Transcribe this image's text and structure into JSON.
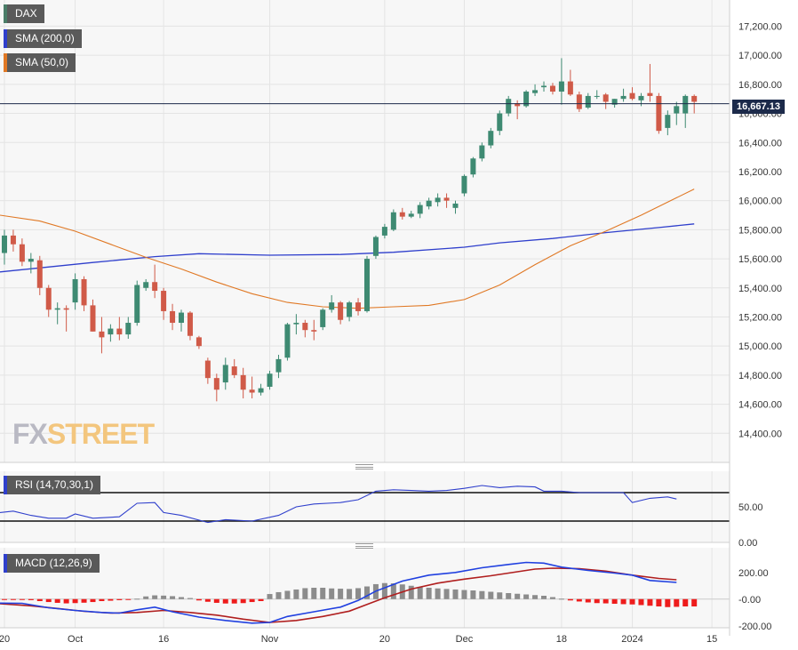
{
  "colors": {
    "up": "#3e8a72",
    "down": "#d05a48",
    "sma200": "#2f3fcc",
    "sma50": "#e07824",
    "macd": "#2040e0",
    "signal": "#b01e1e",
    "hist_pos": "#8c8c8c",
    "hist_neg": "#ee1c1c",
    "rsi": "#2f3fcc",
    "price_line": "#1c2a4a",
    "grid": "#e4e4e4",
    "panel_bg": "#f7f7f7"
  },
  "legend": {
    "dax": "DAX",
    "sma200": "SMA (200,0)",
    "sma50": "SMA (50,0)",
    "rsi": "RSI (14,70,30,1)",
    "macd": "MACD (12,26,9)"
  },
  "watermark": {
    "fx": "FX",
    "street": "STREET"
  },
  "last_price_label": "16,667.13",
  "chart_data": [
    {
      "type": "candlestick",
      "title": "DAX",
      "x_tick_labels": [
        {
          "label": "20",
          "index": 0
        },
        {
          "label": "Oct",
          "index": 8
        },
        {
          "label": "16",
          "index": 18
        },
        {
          "label": "Nov",
          "index": 30
        },
        {
          "label": "20",
          "index": 43
        },
        {
          "label": "Dec",
          "index": 52
        },
        {
          "label": "18",
          "index": 63
        },
        {
          "label": "2024",
          "index": 71
        },
        {
          "label": "15",
          "index": 80
        }
      ],
      "y_tick_labels": [
        "14,400.00",
        "14,600.00",
        "14,800.00",
        "15,000.00",
        "15,200.00",
        "15,400.00",
        "15,600.00",
        "15,800.00",
        "16,000.00",
        "16,200.00",
        "16,400.00",
        "16,600.00",
        "16,800.00",
        "17,000.00",
        "17,200.00"
      ],
      "ylim": [
        14200,
        17380
      ],
      "x_range": [
        -0.5,
        82
      ],
      "last_price": 16667.13,
      "candles": [
        [
          15640,
          15800,
          15560,
          15760
        ],
        [
          15760,
          15800,
          15650,
          15700
        ],
        [
          15700,
          15740,
          15550,
          15580
        ],
        [
          15580,
          15640,
          15500,
          15600
        ],
        [
          15590,
          15620,
          15350,
          15400
        ],
        [
          15400,
          15420,
          15200,
          15250
        ],
        [
          15250,
          15300,
          15150,
          15260
        ],
        [
          15260,
          15280,
          15100,
          15250
        ],
        [
          15300,
          15500,
          15250,
          15460
        ],
        [
          15460,
          15480,
          15240,
          15280
        ],
        [
          15280,
          15320,
          15100,
          15100
        ],
        [
          15100,
          15200,
          14950,
          15060
        ],
        [
          15080,
          15150,
          15030,
          15120
        ],
        [
          15120,
          15200,
          15040,
          15080
        ],
        [
          15080,
          15200,
          15050,
          15160
        ],
        [
          15160,
          15450,
          15140,
          15420
        ],
        [
          15400,
          15460,
          15380,
          15440
        ],
        [
          15440,
          15560,
          15330,
          15380
        ],
        [
          15380,
          15400,
          15180,
          15240
        ],
        [
          15240,
          15290,
          15110,
          15160
        ],
        [
          15160,
          15250,
          15100,
          15230
        ],
        [
          15230,
          15240,
          15040,
          15070
        ],
        [
          15060,
          15070,
          14980,
          15000
        ],
        [
          14900,
          14920,
          14740,
          14780
        ],
        [
          14780,
          14810,
          14620,
          14700
        ],
        [
          14750,
          14920,
          14700,
          14870
        ],
        [
          14860,
          14910,
          14780,
          14800
        ],
        [
          14800,
          14850,
          14640,
          14700
        ],
        [
          14700,
          14790,
          14640,
          14680
        ],
        [
          14680,
          14740,
          14660,
          14710
        ],
        [
          14720,
          14830,
          14700,
          14810
        ],
        [
          14820,
          14940,
          14780,
          14910
        ],
        [
          14920,
          15160,
          14900,
          15150
        ],
        [
          15150,
          15220,
          15080,
          15160
        ],
        [
          15160,
          15180,
          15060,
          15110
        ],
        [
          15110,
          15180,
          15040,
          15100
        ],
        [
          15130,
          15260,
          15110,
          15250
        ],
        [
          15250,
          15350,
          15230,
          15300
        ],
        [
          15300,
          15310,
          15150,
          15180
        ],
        [
          15200,
          15310,
          15170,
          15300
        ],
        [
          15300,
          15330,
          15210,
          15240
        ],
        [
          15240,
          15620,
          15230,
          15600
        ],
        [
          15620,
          15760,
          15600,
          15750
        ],
        [
          15760,
          15840,
          15740,
          15820
        ],
        [
          15800,
          15940,
          15790,
          15920
        ],
        [
          15920,
          15950,
          15870,
          15890
        ],
        [
          15890,
          15930,
          15880,
          15910
        ],
        [
          15910,
          15990,
          15880,
          15970
        ],
        [
          15960,
          16020,
          15940,
          16000
        ],
        [
          15990,
          16050,
          15960,
          16020
        ],
        [
          16020,
          16050,
          15950,
          16000
        ],
        [
          15950,
          16000,
          15910,
          15980
        ],
        [
          16050,
          16180,
          16030,
          16170
        ],
        [
          16180,
          16300,
          16160,
          16290
        ],
        [
          16290,
          16400,
          16270,
          16380
        ],
        [
          16380,
          16500,
          16360,
          16480
        ],
        [
          16480,
          16620,
          16450,
          16600
        ],
        [
          16600,
          16720,
          16580,
          16700
        ],
        [
          16670,
          16690,
          16560,
          16650
        ],
        [
          16650,
          16760,
          16640,
          16750
        ],
        [
          16740,
          16800,
          16720,
          16760
        ],
        [
          16780,
          16820,
          16750,
          16790
        ],
        [
          16790,
          16810,
          16730,
          16750
        ],
        [
          16750,
          16980,
          16660,
          16820
        ],
        [
          16820,
          16900,
          16720,
          16730
        ],
        [
          16730,
          16750,
          16610,
          16630
        ],
        [
          16640,
          16740,
          16630,
          16720
        ],
        [
          16720,
          16760,
          16700,
          16720
        ],
        [
          16730,
          16740,
          16630,
          16680
        ],
        [
          16660,
          16700,
          16640,
          16700
        ],
        [
          16700,
          16770,
          16680,
          16720
        ],
        [
          16740,
          16780,
          16690,
          16700
        ],
        [
          16690,
          16740,
          16650,
          16720
        ],
        [
          16740,
          16940,
          16680,
          16720
        ],
        [
          16720,
          16740,
          16460,
          16480
        ],
        [
          16500,
          16620,
          16450,
          16590
        ],
        [
          16600,
          16680,
          16520,
          16650
        ],
        [
          16600,
          16730,
          16500,
          16720
        ],
        [
          16720,
          16730,
          16600,
          16680
        ]
      ]
    },
    {
      "type": "line",
      "title": "SMA (200,0)",
      "points": [
        [
          -0.5,
          15510
        ],
        [
          10,
          15575
        ],
        [
          17,
          15615
        ],
        [
          22,
          15635
        ],
        [
          30,
          15625
        ],
        [
          38,
          15630
        ],
        [
          44,
          15645
        ],
        [
          52,
          15680
        ],
        [
          56,
          15710
        ],
        [
          62,
          15740
        ],
        [
          68,
          15780
        ],
        [
          74,
          15815
        ],
        [
          78,
          15840
        ]
      ]
    },
    {
      "type": "line",
      "title": "SMA (50,0)",
      "points": [
        [
          -0.5,
          15900
        ],
        [
          4,
          15860
        ],
        [
          8,
          15790
        ],
        [
          12,
          15700
        ],
        [
          16,
          15610
        ],
        [
          20,
          15530
        ],
        [
          24,
          15440
        ],
        [
          28,
          15360
        ],
        [
          32,
          15300
        ],
        [
          36,
          15270
        ],
        [
          40,
          15260
        ],
        [
          44,
          15270
        ],
        [
          48,
          15280
        ],
        [
          52,
          15320
        ],
        [
          56,
          15420
        ],
        [
          60,
          15560
        ],
        [
          64,
          15690
        ],
        [
          68,
          15790
        ],
        [
          72,
          15900
        ],
        [
          76,
          16020
        ],
        [
          78,
          16080
        ]
      ]
    },
    {
      "type": "line",
      "title": "RSI (14,70,30,1)",
      "y_tick_labels": [
        "50.00",
        "0.00"
      ],
      "levels": [
        70,
        30
      ],
      "ylim": [
        0,
        100
      ],
      "points": [
        [
          -0.5,
          42
        ],
        [
          1,
          44
        ],
        [
          3,
          38
        ],
        [
          5,
          34
        ],
        [
          7,
          34
        ],
        [
          8,
          40
        ],
        [
          10,
          34
        ],
        [
          13,
          36
        ],
        [
          15,
          55
        ],
        [
          17,
          56
        ],
        [
          18,
          42
        ],
        [
          20,
          38
        ],
        [
          23,
          28
        ],
        [
          25,
          32
        ],
        [
          28,
          30
        ],
        [
          31,
          38
        ],
        [
          33,
          50
        ],
        [
          35,
          54
        ],
        [
          38,
          56
        ],
        [
          40,
          60
        ],
        [
          42,
          72
        ],
        [
          44,
          74
        ],
        [
          46,
          73
        ],
        [
          48,
          72
        ],
        [
          50,
          73
        ],
        [
          52,
          76
        ],
        [
          54,
          80
        ],
        [
          56,
          77
        ],
        [
          58,
          79
        ],
        [
          60,
          78
        ],
        [
          61,
          72
        ],
        [
          63,
          72
        ],
        [
          65,
          70
        ],
        [
          68,
          70
        ],
        [
          70,
          70
        ],
        [
          71,
          56
        ],
        [
          73,
          62
        ],
        [
          75,
          64
        ],
        [
          76,
          61
        ]
      ]
    },
    {
      "type": "bar",
      "title": "MACD (12,26,9)",
      "y_tick_labels": [
        "200.00",
        "-0.00",
        "-200.00"
      ],
      "ylim": [
        -215,
        385
      ],
      "histogram": [
        -5,
        -5,
        -5,
        -8,
        -15,
        -22,
        -28,
        -32,
        -30,
        -27,
        -22,
        -15,
        -12,
        -8,
        -3,
        3,
        20,
        28,
        26,
        22,
        15,
        8,
        -10,
        -20,
        -28,
        -33,
        -33,
        -30,
        -22,
        -15,
        38,
        52,
        62,
        72,
        82,
        85,
        85,
        80,
        78,
        76,
        82,
        95,
        112,
        120,
        118,
        110,
        100,
        92,
        85,
        80,
        76,
        72,
        68,
        65,
        60,
        55,
        50,
        45,
        40,
        35,
        30,
        25,
        15,
        3,
        -10,
        -18,
        -25,
        -30,
        -32,
        -35,
        -38,
        -40,
        -45,
        -50,
        -55,
        -60,
        -58,
        -55,
        -55
      ],
      "macd": [
        [
          -0.5,
          -30
        ],
        [
          2,
          -32
        ],
        [
          5,
          -65
        ],
        [
          8,
          -85
        ],
        [
          11,
          -100
        ],
        [
          13,
          -105
        ],
        [
          15,
          -80
        ],
        [
          17,
          -60
        ],
        [
          19,
          -95
        ],
        [
          22,
          -135
        ],
        [
          25,
          -160
        ],
        [
          28,
          -180
        ],
        [
          30,
          -175
        ],
        [
          32,
          -130
        ],
        [
          35,
          -95
        ],
        [
          38,
          -60
        ],
        [
          40,
          -10
        ],
        [
          42,
          60
        ],
        [
          45,
          135
        ],
        [
          48,
          180
        ],
        [
          51,
          200
        ],
        [
          54,
          235
        ],
        [
          57,
          260
        ],
        [
          59,
          275
        ],
        [
          61,
          270
        ],
        [
          63,
          240
        ],
        [
          66,
          215
        ],
        [
          69,
          195
        ],
        [
          71,
          180
        ],
        [
          73,
          140
        ],
        [
          76,
          125
        ]
      ],
      "signal": [
        [
          -0.5,
          -35
        ],
        [
          3,
          -50
        ],
        [
          6,
          -70
        ],
        [
          9,
          -92
        ],
        [
          12,
          -105
        ],
        [
          15,
          -100
        ],
        [
          18,
          -85
        ],
        [
          21,
          -100
        ],
        [
          24,
          -120
        ],
        [
          27,
          -150
        ],
        [
          30,
          -175
        ],
        [
          33,
          -160
        ],
        [
          36,
          -130
        ],
        [
          39,
          -90
        ],
        [
          41,
          -40
        ],
        [
          43,
          10
        ],
        [
          46,
          75
        ],
        [
          49,
          120
        ],
        [
          52,
          150
        ],
        [
          55,
          175
        ],
        [
          58,
          205
        ],
        [
          60,
          225
        ],
        [
          62,
          232
        ],
        [
          65,
          228
        ],
        [
          68,
          210
        ],
        [
          71,
          180
        ],
        [
          74,
          155
        ],
        [
          76,
          145
        ]
      ]
    }
  ]
}
